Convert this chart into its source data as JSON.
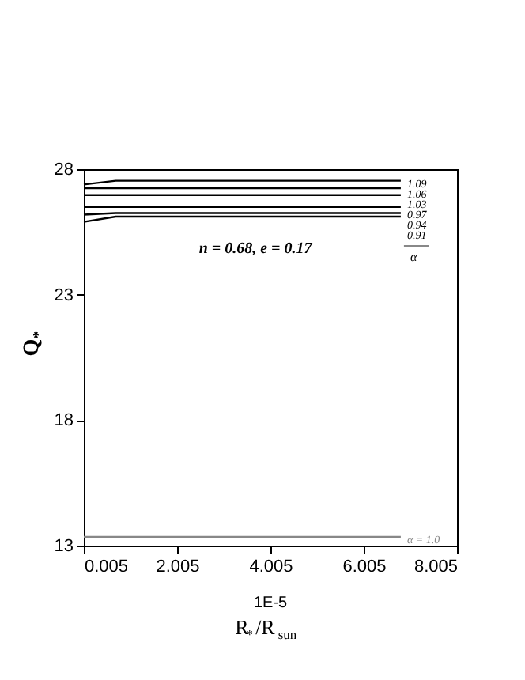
{
  "chart_data": {
    "type": "line",
    "xlabel": "R$_{*}$/R$_{sun}$",
    "ylabel": "Q$_{*}$",
    "legend_title": "α",
    "annotations": [
      "n = 0.68, e = 0.17",
      "1E-5"
    ],
    "xlim": [
      0.005,
      8.005
    ],
    "xticks": [
      0.005,
      2.005,
      4.005,
      6.005,
      8.005
    ],
    "ylim": [
      13,
      28
    ],
    "yticks": [
      13,
      18,
      23,
      28
    ],
    "grid": false,
    "legend": false,
    "line_style": "solid",
    "marker": "none",
    "series": [
      {
        "name": "1.09",
        "color": "#000000",
        "x": [
          0.005,
          0.69,
          6.8
        ],
        "values": [
          27.39,
          27.54,
          27.54
        ]
      },
      {
        "name": "1.06",
        "color": "#000000",
        "x": [
          0.005,
          6.8
        ],
        "values": [
          27.24,
          27.24
        ]
      },
      {
        "name": "1.03",
        "color": "#000000",
        "x": [
          0.005,
          6.8
        ],
        "values": [
          26.97,
          26.97
        ]
      },
      {
        "name": "0.97",
        "color": "#000000",
        "x": [
          0.005,
          6.8
        ],
        "values": [
          26.49,
          26.49
        ]
      },
      {
        "name": "0.94",
        "color": "#000000",
        "x": [
          0.005,
          0.69,
          6.8
        ],
        "values": [
          26.19,
          26.25,
          26.25
        ]
      },
      {
        "name": "0.91",
        "color": "#000000",
        "x": [
          0.005,
          0.69,
          6.8
        ],
        "values": [
          25.9,
          26.11,
          26.11
        ]
      },
      {
        "name": "α = 1.0",
        "color": "#888888",
        "x": [
          0.005,
          6.8
        ],
        "values": [
          13.35,
          13.35
        ]
      }
    ]
  }
}
